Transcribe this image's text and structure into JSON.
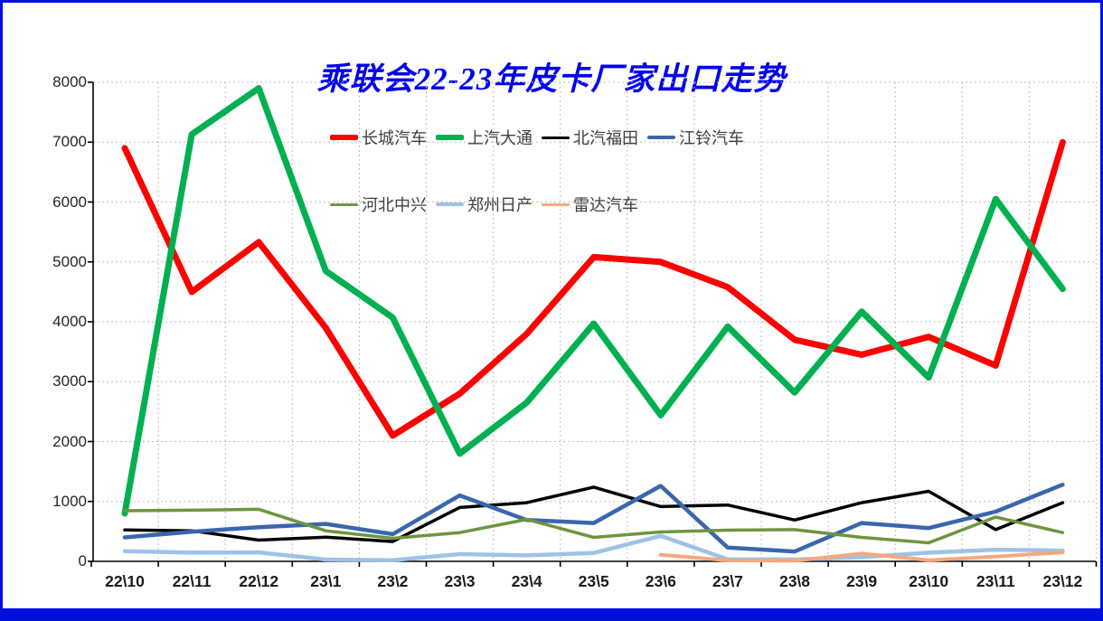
{
  "title": "乘联会22-23年皮卡厂家出口走势",
  "frame": {
    "border_color": "#0010dd",
    "background": "#ffffff"
  },
  "axis": {
    "label_color": "#262626",
    "line_color": "#000000",
    "grid_color": "#bfbfbf"
  },
  "chart_data": {
    "type": "line",
    "title": "乘联会22-23年皮卡厂家出口走势",
    "title_color": "#0000ee",
    "xlabel": "",
    "ylabel": "",
    "ylim": [
      0,
      8000
    ],
    "ytick_step": 1000,
    "grid": true,
    "legend_position": "top, two rows inside plot",
    "categories": [
      "22\\10",
      "22\\11",
      "22\\12",
      "23\\1",
      "23\\2",
      "23\\3",
      "23\\4",
      "23\\5",
      "23\\6",
      "23\\7",
      "23\\8",
      "23\\9",
      "23\\10",
      "23\\11",
      "23\\12"
    ],
    "yticks": [
      0,
      1000,
      2000,
      3000,
      4000,
      5000,
      6000,
      7000,
      8000
    ],
    "series": [
      {
        "name": "长城汽车",
        "color": "#fe0000",
        "line_width": 7,
        "values": [
          6900,
          4500,
          5330,
          3900,
          2100,
          2800,
          3800,
          5080,
          5000,
          4580,
          3700,
          3450,
          3750,
          3270,
          7000
        ]
      },
      {
        "name": "上汽大通",
        "color": "#00b050",
        "line_width": 7,
        "values": [
          800,
          7130,
          7900,
          4850,
          4070,
          1800,
          2650,
          3970,
          2440,
          3920,
          2820,
          4170,
          3070,
          6050,
          4550
        ]
      },
      {
        "name": "北汽福田",
        "color": "#000000",
        "line_width": 3.5,
        "values": [
          525,
          510,
          355,
          405,
          330,
          900,
          980,
          1240,
          915,
          940,
          690,
          980,
          1170,
          530,
          980
        ]
      },
      {
        "name": "江铃汽车",
        "color": "#3a66ac",
        "line_width": 4.5,
        "values": [
          400,
          495,
          570,
          625,
          455,
          1100,
          690,
          640,
          1260,
          230,
          165,
          640,
          555,
          830,
          1280
        ]
      },
      {
        "name": "河北中兴",
        "color": "#6e9540",
        "line_width": 3.5,
        "values": [
          845,
          855,
          870,
          510,
          385,
          480,
          700,
          400,
          490,
          520,
          530,
          400,
          310,
          740,
          480
        ]
      },
      {
        "name": "郑州日产",
        "color": "#9dc3e6",
        "line_width": 4.5,
        "values": [
          170,
          145,
          150,
          30,
          20,
          120,
          100,
          140,
          425,
          35,
          30,
          70,
          145,
          195,
          180
        ]
      },
      {
        "name": "雷达汽车",
        "color": "#f4a97e",
        "line_width": 4,
        "values": [
          null,
          null,
          null,
          null,
          null,
          null,
          null,
          null,
          110,
          15,
          10,
          130,
          20,
          80,
          150
        ]
      }
    ],
    "legend_rows": [
      [
        0,
        1,
        2,
        3
      ],
      [
        4,
        5,
        6
      ]
    ]
  }
}
